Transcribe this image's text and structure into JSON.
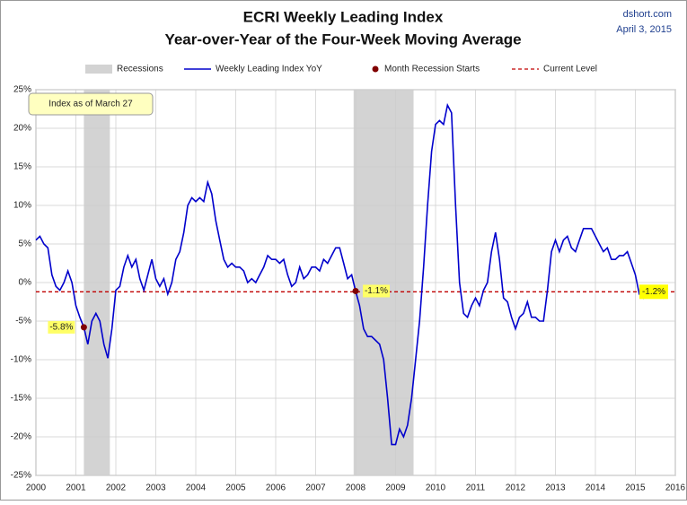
{
  "chart_data": {
    "type": "line",
    "title": "ECRI Weekly Leading Index",
    "subtitle": "Year-over-Year of the Four-Week Moving Average",
    "source": "dshort.com",
    "date": "April 3, 2015",
    "annotation": "Index as of March 27",
    "xlim": [
      2000,
      2016
    ],
    "ylim": [
      -25,
      25
    ],
    "xticks": [
      2000,
      2001,
      2002,
      2003,
      2004,
      2005,
      2006,
      2007,
      2008,
      2009,
      2010,
      2011,
      2012,
      2013,
      2014,
      2015,
      2016
    ],
    "yticks": [
      {
        "value": -25,
        "label": "-25%"
      },
      {
        "value": -20,
        "label": "-20%"
      },
      {
        "value": -15,
        "label": "-15%"
      },
      {
        "value": -10,
        "label": "-10%"
      },
      {
        "value": -5,
        "label": "-5%"
      },
      {
        "value": 0,
        "label": "0%"
      },
      {
        "value": 5,
        "label": "5%"
      },
      {
        "value": 10,
        "label": "10%"
      },
      {
        "value": 15,
        "label": "15%"
      },
      {
        "value": 20,
        "label": "20%"
      },
      {
        "value": 25,
        "label": "25%"
      }
    ],
    "grid": true,
    "recessions": {
      "name": "Recessions",
      "color": "#d3d3d3",
      "spans": [
        [
          2001.2,
          2001.85
        ],
        [
          2007.95,
          2009.45
        ]
      ]
    },
    "series": [
      {
        "name": "Weekly Leading Index YoY",
        "color": "#0000cc",
        "x": [
          2000,
          2000.1,
          2000.2,
          2000.3,
          2000.4,
          2000.5,
          2000.6,
          2000.7,
          2000.8,
          2000.9,
          2001,
          2001.1,
          2001.2,
          2001.3,
          2001.4,
          2001.5,
          2001.6,
          2001.7,
          2001.8,
          2001.9,
          2002,
          2002.1,
          2002.2,
          2002.3,
          2002.4,
          2002.5,
          2002.6,
          2002.7,
          2002.8,
          2002.9,
          2003,
          2003.1,
          2003.2,
          2003.3,
          2003.4,
          2003.5,
          2003.6,
          2003.7,
          2003.8,
          2003.9,
          2004,
          2004.1,
          2004.2,
          2004.3,
          2004.4,
          2004.5,
          2004.6,
          2004.7,
          2004.8,
          2004.9,
          2005,
          2005.1,
          2005.2,
          2005.3,
          2005.4,
          2005.5,
          2005.6,
          2005.7,
          2005.8,
          2005.9,
          2006,
          2006.1,
          2006.2,
          2006.3,
          2006.4,
          2006.5,
          2006.6,
          2006.7,
          2006.8,
          2006.9,
          2007,
          2007.1,
          2007.2,
          2007.3,
          2007.4,
          2007.5,
          2007.6,
          2007.7,
          2007.8,
          2007.9,
          2008,
          2008.1,
          2008.2,
          2008.3,
          2008.4,
          2008.5,
          2008.6,
          2008.7,
          2008.8,
          2008.9,
          2009,
          2009.1,
          2009.2,
          2009.3,
          2009.4,
          2009.5,
          2009.6,
          2009.7,
          2009.8,
          2009.9,
          2010,
          2010.1,
          2010.2,
          2010.3,
          2010.4,
          2010.5,
          2010.6,
          2010.7,
          2010.8,
          2010.9,
          2011,
          2011.1,
          2011.2,
          2011.3,
          2011.4,
          2011.5,
          2011.6,
          2011.7,
          2011.8,
          2011.9,
          2012,
          2012.1,
          2012.2,
          2012.3,
          2012.4,
          2012.5,
          2012.6,
          2012.7,
          2012.8,
          2012.9,
          2013,
          2013.1,
          2013.2,
          2013.3,
          2013.4,
          2013.5,
          2013.6,
          2013.7,
          2013.8,
          2013.9,
          2014,
          2014.1,
          2014.2,
          2014.3,
          2014.4,
          2014.5,
          2014.6,
          2014.7,
          2014.8,
          2014.9,
          2015,
          2015.1,
          2015.2,
          2015.25
        ],
        "values": [
          5.5,
          6,
          5,
          4.5,
          1,
          -0.5,
          -1,
          0,
          1.5,
          0,
          -3,
          -4.5,
          -5.8,
          -8,
          -5,
          -4,
          -5,
          -8,
          -9.8,
          -6,
          -1,
          -0.5,
          2,
          3.5,
          2,
          3,
          0.5,
          -1,
          1,
          3,
          0.5,
          -0.5,
          0.5,
          -1.5,
          0,
          3,
          4,
          6.5,
          10,
          11,
          10.5,
          11,
          10.5,
          13,
          11.5,
          8,
          5.5,
          3,
          2,
          2.5,
          2,
          2,
          1.5,
          0,
          0.5,
          0,
          1,
          2,
          3.5,
          3,
          3,
          2.5,
          3,
          1,
          -0.5,
          0,
          2,
          0.5,
          1,
          2,
          2,
          1.5,
          3,
          2.5,
          3.5,
          4.5,
          4.5,
          2.5,
          0.5,
          1,
          -1.1,
          -3,
          -6,
          -7,
          -7,
          -7.5,
          -8,
          -10,
          -15,
          -21,
          -21,
          -19,
          -20,
          -18.5,
          -15,
          -10,
          -5,
          2,
          10,
          17,
          20.5,
          21,
          20.5,
          23,
          22,
          10,
          0,
          -4,
          -4.5,
          -3,
          -2,
          -3,
          -1,
          0,
          4,
          6.5,
          3,
          -2,
          -2.5,
          -4.5,
          -6,
          -4.5,
          -4,
          -2.5,
          -4.5,
          -4.5,
          -5,
          -5,
          -1,
          4,
          5.5,
          4,
          5.5,
          6,
          4.5,
          4,
          5.5,
          7,
          7,
          7,
          6,
          5,
          4,
          4.5,
          3,
          3,
          3.5,
          3.5,
          4,
          2.5,
          1,
          -1.5,
          -2,
          -1.2
        ]
      }
    ],
    "recession_starts": {
      "name": "Month Recession Starts",
      "color": "#800000",
      "x": [
        2001.2,
        2008.0
      ],
      "values": [
        -5.8,
        -1.1
      ],
      "value_labels": [
        "-5.8%",
        "-1.1%"
      ]
    },
    "current_level": {
      "name": "Current Level",
      "color": "#c00000",
      "value": -1.2,
      "value_label": "-1.2%"
    }
  }
}
